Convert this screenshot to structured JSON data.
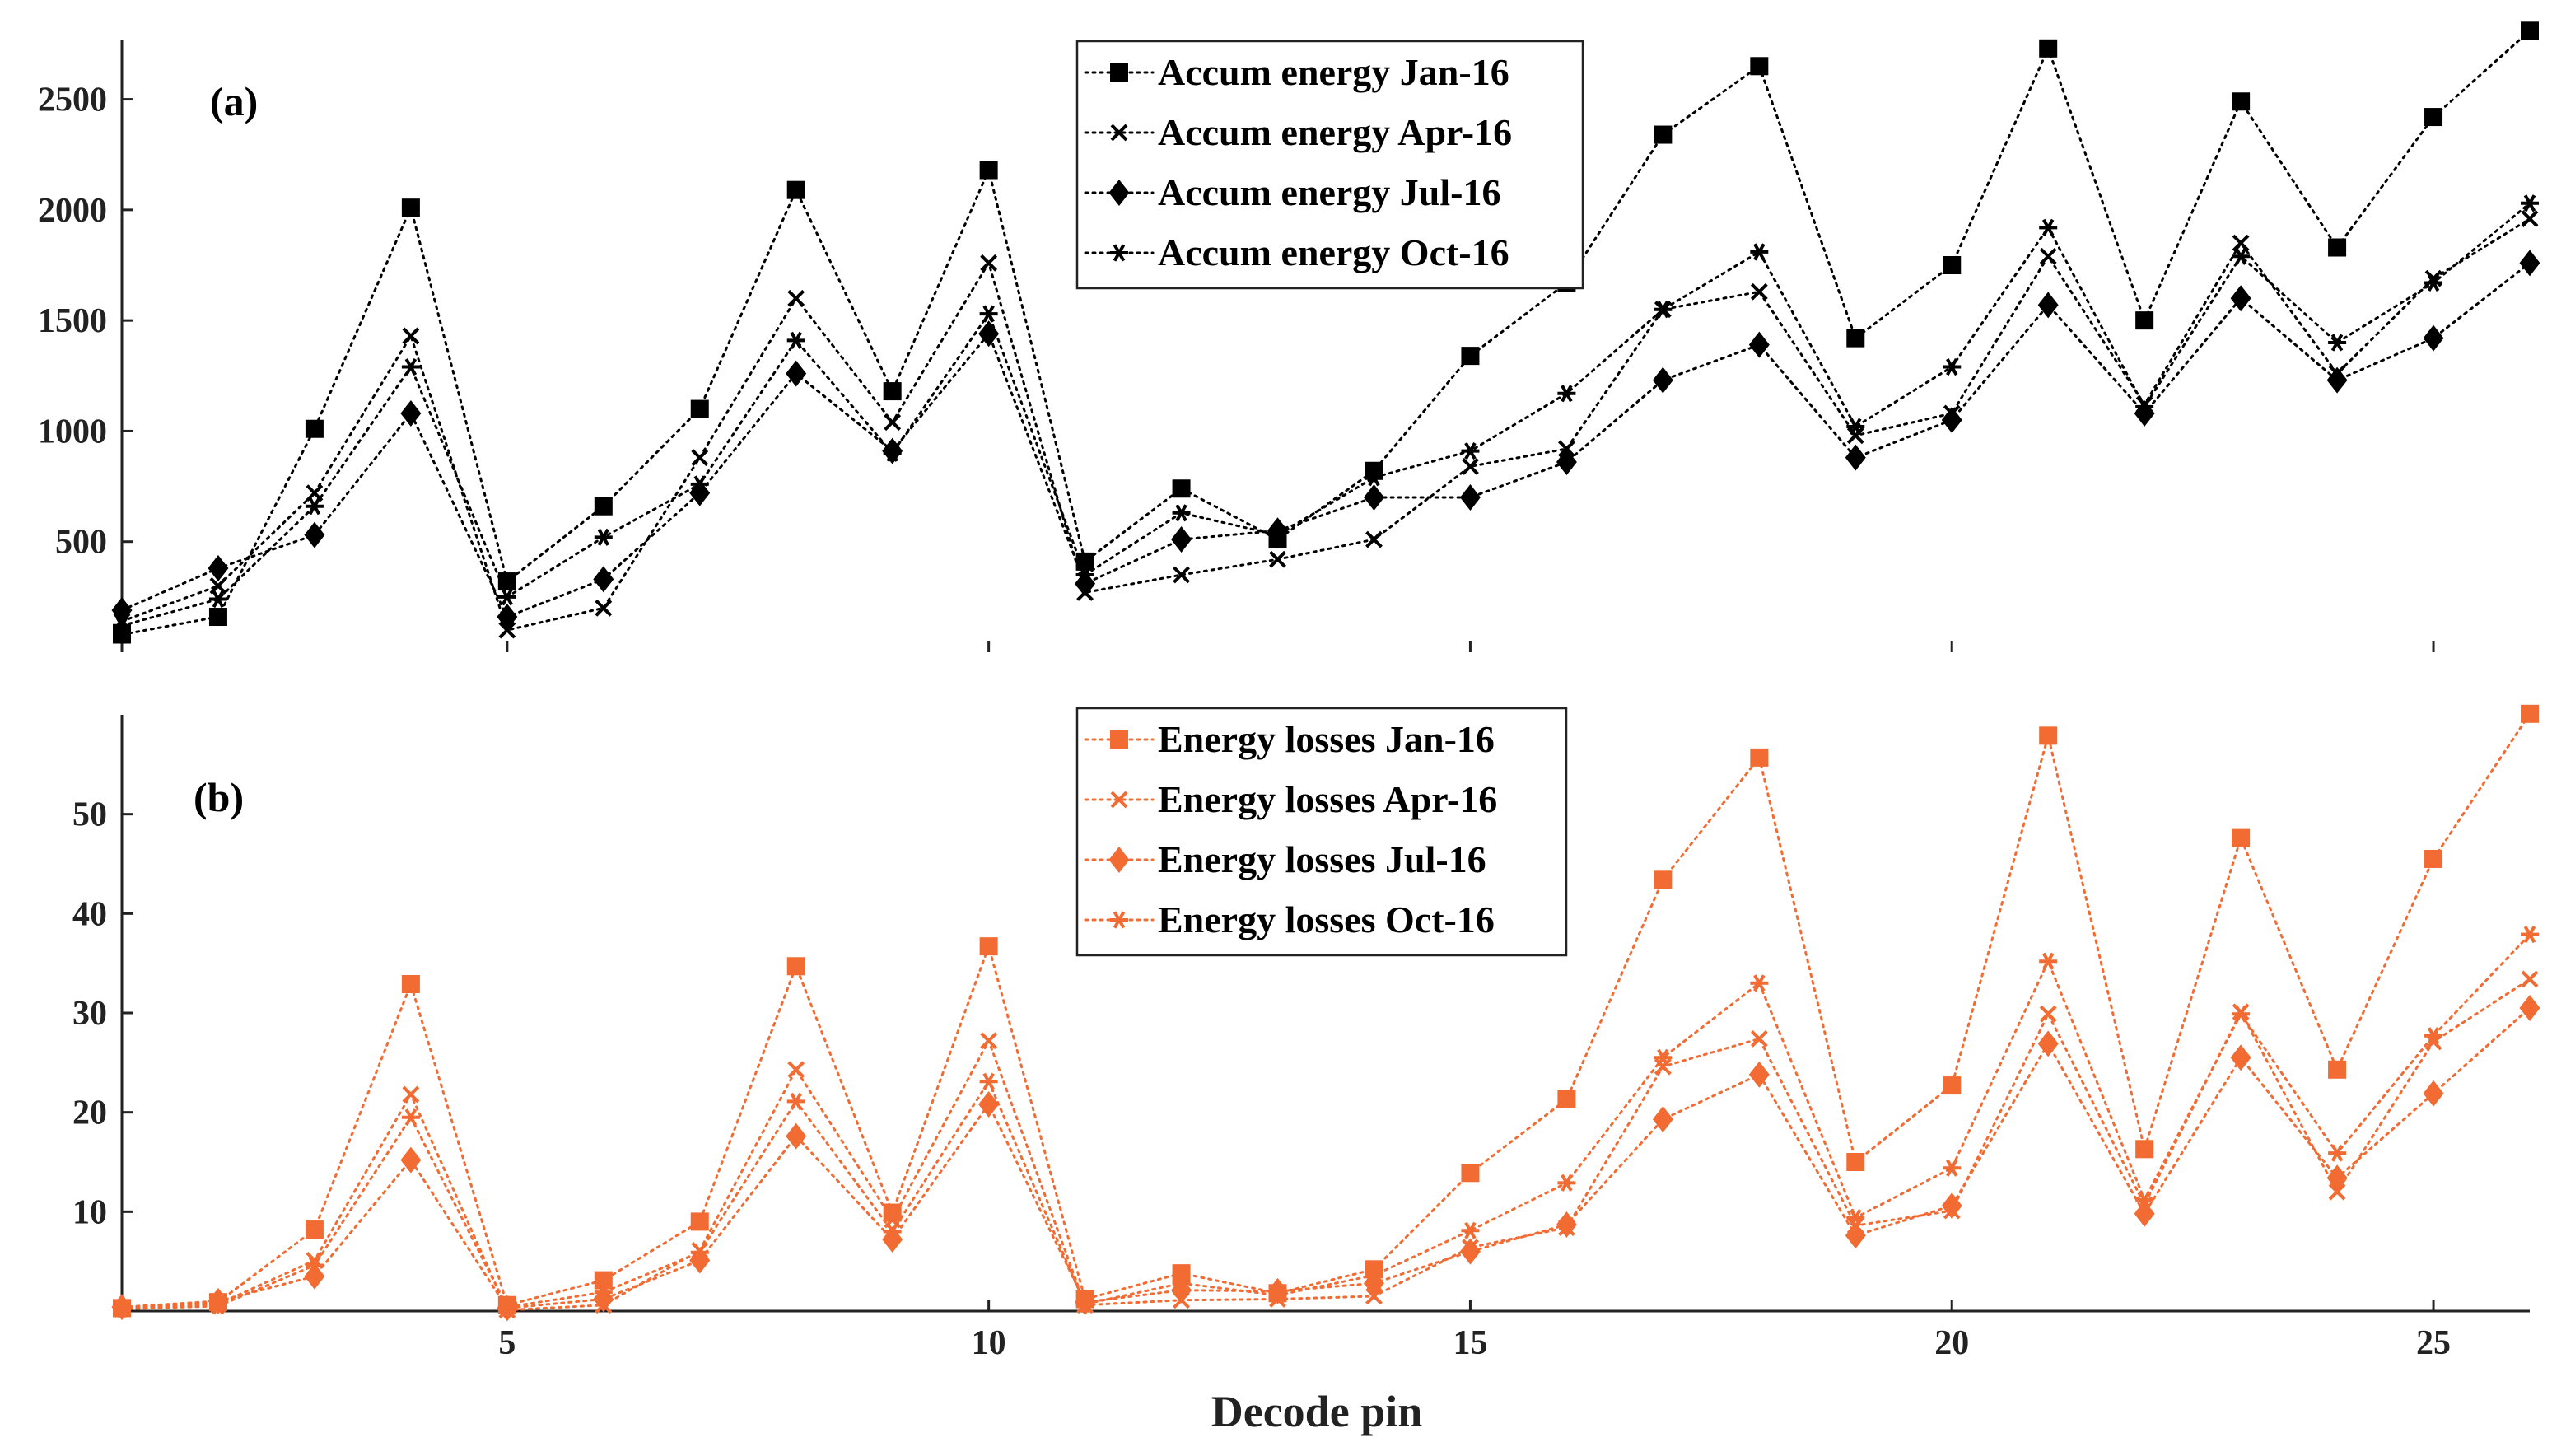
{
  "xlabel": "Decode pin",
  "colors": {
    "black": "#000000",
    "orange": "#f26b32"
  },
  "chart_data": [
    {
      "type": "line",
      "panel_label": "(a)",
      "title": "",
      "xlabel": "Decode pin",
      "ylabel": "",
      "x": [
        1,
        2,
        3,
        4,
        5,
        6,
        7,
        8,
        9,
        10,
        11,
        12,
        13,
        14,
        15,
        16,
        17,
        18,
        19,
        20,
        21,
        22,
        23,
        24,
        25,
        26
      ],
      "xlim": [
        1,
        26
      ],
      "ylim": [
        0,
        2800
      ],
      "xticks": [
        "5",
        "10",
        "15",
        "20",
        "25"
      ],
      "xtick_values": [
        5,
        10,
        15,
        20,
        25
      ],
      "yticks": [
        "500",
        "1000",
        "1500",
        "2000",
        "2500"
      ],
      "ytick_values": [
        500,
        1000,
        1500,
        2000,
        2500
      ],
      "legend_position": "top-right",
      "series": [
        {
          "name": "Accum energy Jan-16",
          "marker": "square",
          "color": "#000000",
          "values": [
            80,
            160,
            1010,
            2010,
            320,
            660,
            1100,
            2090,
            1180,
            2180,
            410,
            740,
            510,
            820,
            1340,
            1670,
            2340,
            2650,
            1420,
            1750,
            2730,
            1500,
            2490,
            1830,
            2420,
            2810
          ]
        },
        {
          "name": "Accum energy Apr-16",
          "marker": "x",
          "color": "#000000",
          "values": [
            140,
            300,
            720,
            1430,
            100,
            200,
            880,
            1600,
            1040,
            1760,
            270,
            350,
            420,
            510,
            840,
            920,
            1550,
            1630,
            980,
            1080,
            1790,
            1120,
            1850,
            1260,
            1690,
            1960
          ]
        },
        {
          "name": "Accum energy Jul-16",
          "marker": "diamond",
          "color": "#000000",
          "values": [
            190,
            380,
            530,
            1080,
            160,
            330,
            720,
            1260,
            910,
            1440,
            310,
            510,
            550,
            700,
            700,
            860,
            1230,
            1390,
            880,
            1050,
            1570,
            1080,
            1600,
            1230,
            1420,
            1760
          ]
        },
        {
          "name": "Accum energy Oct-16",
          "marker": "asterisk",
          "color": "#000000",
          "values": [
            120,
            240,
            660,
            1290,
            250,
            520,
            760,
            1410,
            900,
            1530,
            350,
            630,
            530,
            790,
            910,
            1170,
            1550,
            1810,
            1020,
            1290,
            1920,
            1110,
            1790,
            1400,
            1670,
            2030
          ]
        }
      ]
    },
    {
      "type": "line",
      "panel_label": "(b)",
      "title": "",
      "xlabel": "Decode pin",
      "ylabel": "",
      "x": [
        1,
        2,
        3,
        4,
        5,
        6,
        7,
        8,
        9,
        10,
        11,
        12,
        13,
        14,
        15,
        16,
        17,
        18,
        19,
        20,
        21,
        22,
        23,
        24,
        25,
        26
      ],
      "xlim": [
        1,
        26
      ],
      "ylim": [
        0,
        60
      ],
      "xticks": [
        "5",
        "10",
        "15",
        "20",
        "25"
      ],
      "xtick_values": [
        5,
        10,
        15,
        20,
        25
      ],
      "yticks": [
        "10",
        "20",
        "30",
        "40",
        "50"
      ],
      "ytick_values": [
        10,
        20,
        30,
        40,
        50
      ],
      "legend_position": "top-right",
      "series": [
        {
          "name": "Energy losses Jan-16",
          "marker": "square",
          "color": "#f26b32",
          "values": [
            0.3,
            0.9,
            8.2,
            32.9,
            0.6,
            3.1,
            9.0,
            34.7,
            9.9,
            36.7,
            1.2,
            3.8,
            1.8,
            4.2,
            13.9,
            21.3,
            43.4,
            55.7,
            15.0,
            22.7,
            57.9,
            16.3,
            47.6,
            24.3,
            45.5,
            60.1
          ]
        },
        {
          "name": "Energy losses Apr-16",
          "marker": "x",
          "color": "#f26b32",
          "values": [
            0.2,
            0.7,
            5.1,
            21.8,
            0.1,
            0.6,
            6.1,
            24.3,
            9.2,
            27.2,
            0.6,
            1.1,
            1.2,
            1.5,
            6.4,
            8.4,
            24.6,
            27.4,
            8.6,
            10.1,
            29.9,
            10.7,
            30.1,
            12.0,
            27.1,
            33.4
          ]
        },
        {
          "name": "Energy losses Jul-16",
          "marker": "diamond",
          "color": "#f26b32",
          "values": [
            0.4,
            1.0,
            3.5,
            15.2,
            0.3,
            1.2,
            5.1,
            17.6,
            7.2,
            20.8,
            0.9,
            2.1,
            2.0,
            2.8,
            6.0,
            8.7,
            19.3,
            23.8,
            7.6,
            10.6,
            26.9,
            9.8,
            25.5,
            13.4,
            21.9,
            30.5
          ]
        },
        {
          "name": "Energy losses Oct-16",
          "marker": "asterisk",
          "color": "#f26b32",
          "values": [
            0.2,
            0.5,
            4.6,
            19.5,
            0.4,
            1.9,
            5.9,
            21.1,
            8.0,
            23.1,
            0.7,
            2.8,
            1.6,
            3.6,
            8.1,
            12.9,
            25.5,
            33.0,
            9.4,
            14.4,
            35.2,
            11.2,
            29.9,
            15.9,
            27.7,
            37.9
          ]
        }
      ]
    }
  ]
}
